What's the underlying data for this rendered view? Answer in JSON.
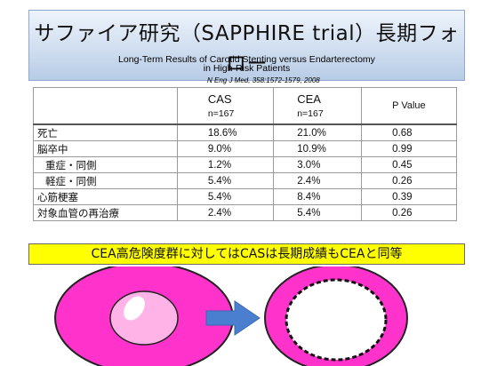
{
  "slide": {
    "title": "サファイア研究（SAPPHIRE trial）長期フォロー",
    "subtitle_line1": "Long-Term Results of Carotid Stenting versus Endarterectomy",
    "subtitle_line2": "in High-Risk Patients",
    "citation": "N Eng J Med, 358:1572-1579, 2008"
  },
  "table": {
    "headers": {
      "cas": "CAS",
      "cas_n": "n=167",
      "cea": "CEA",
      "cea_n": "n=167",
      "p": "P Value"
    },
    "rows": [
      {
        "label": "死亡",
        "cas": "18.6%",
        "cea": "21.0%",
        "p": "0.68"
      },
      {
        "label": "脳卒中",
        "cas": "9.0%",
        "cea": "10.9%",
        "p": "0.99"
      },
      {
        "label": "重症・同側",
        "cas": "1.2%",
        "cea": "3.0%",
        "p": "0.45"
      },
      {
        "label": "軽症・同側",
        "cas": "5.4%",
        "cea": "2.4%",
        "p": "0.26"
      },
      {
        "label": "心筋梗塞",
        "cas": "5.4%",
        "cea": "8.4%",
        "p": "0.39"
      },
      {
        "label": "対象血管の再治療",
        "cas": "2.4%",
        "cea": "5.4%",
        "p": "0.26"
      }
    ]
  },
  "conclusion": "CEA高危険度群に対してはCASは長期成績もCEAと同等",
  "colors": {
    "vessel_wall": "#ff33cc",
    "vessel_lumen": "#ffb3e6",
    "vessel_outline": "#222222",
    "arrow": "#4a7fd0",
    "highlight": "#ffff00"
  },
  "icons": [
    "vessel-stenosis-icon",
    "right-arrow-icon",
    "vessel-stent-icon"
  ]
}
